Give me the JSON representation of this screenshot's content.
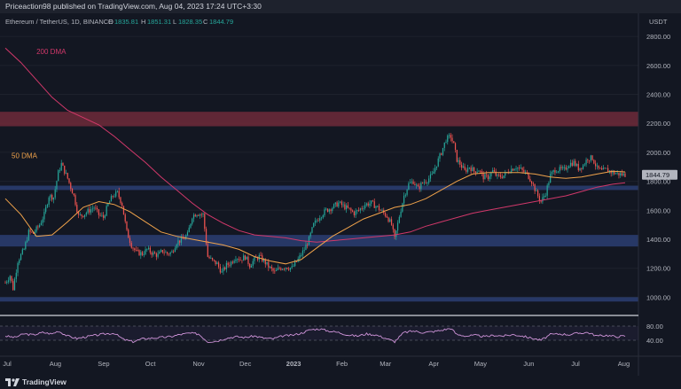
{
  "header": {
    "published": "Priceaction98 published on TradingView.com, Aug 04, 2023 17:24 UTC+3:30"
  },
  "footer": {
    "brand": "TradingView"
  },
  "chart_data": {
    "type": "candlestick",
    "title": "Ethereum / TetherUS, 1D, BINANCE",
    "ohlc": {
      "o_label": "O",
      "o": "1835.81",
      "h_label": "H",
      "h": "1851.31",
      "l_label": "L",
      "l": "1828.35",
      "c_label": "C",
      "c": "1844.79"
    },
    "currency": "USDT",
    "last_price": "1844.79",
    "ylim": [
      880,
      2960
    ],
    "yticks": [
      "2800.00",
      "2600.00",
      "2400.00",
      "2200.00",
      "2000.00",
      "1800.00",
      "1600.00",
      "1400.00",
      "1200.00",
      "1000.00"
    ],
    "xlabels": [
      "Jul",
      "Aug",
      "Sep",
      "Oct",
      "Nov",
      "Dec",
      "2023",
      "Feb",
      "Mar",
      "Apr",
      "May",
      "Jun",
      "Jul",
      "Aug"
    ],
    "xlabel_days": [
      0,
      31,
      62,
      92,
      123,
      153,
      184,
      215,
      243,
      274,
      304,
      335,
      365,
      396
    ],
    "price_path": [
      [
        0,
        1100
      ],
      [
        3,
        1150
      ],
      [
        5,
        1060
      ],
      [
        8,
        1250
      ],
      [
        12,
        1330
      ],
      [
        15,
        1450
      ],
      [
        18,
        1440
      ],
      [
        22,
        1500
      ],
      [
        25,
        1570
      ],
      [
        28,
        1700
      ],
      [
        31,
        1690
      ],
      [
        34,
        1860
      ],
      [
        36,
        1920
      ],
      [
        40,
        1820
      ],
      [
        44,
        1700
      ],
      [
        47,
        1560
      ],
      [
        50,
        1570
      ],
      [
        54,
        1600
      ],
      [
        57,
        1620
      ],
      [
        60,
        1570
      ],
      [
        63,
        1550
      ],
      [
        66,
        1640
      ],
      [
        69,
        1700
      ],
      [
        72,
        1720
      ],
      [
        75,
        1640
      ],
      [
        78,
        1450
      ],
      [
        81,
        1360
      ],
      [
        84,
        1310
      ],
      [
        88,
        1300
      ],
      [
        91,
        1330
      ],
      [
        95,
        1300
      ],
      [
        98,
        1290
      ],
      [
        101,
        1320
      ],
      [
        104,
        1300
      ],
      [
        107,
        1310
      ],
      [
        110,
        1380
      ],
      [
        114,
        1400
      ],
      [
        117,
        1430
      ],
      [
        120,
        1560
      ],
      [
        123,
        1580
      ],
      [
        127,
        1570
      ],
      [
        130,
        1280
      ],
      [
        133,
        1250
      ],
      [
        136,
        1230
      ],
      [
        139,
        1170
      ],
      [
        142,
        1220
      ],
      [
        145,
        1240
      ],
      [
        148,
        1280
      ],
      [
        151,
        1260
      ],
      [
        154,
        1280
      ],
      [
        157,
        1220
      ],
      [
        160,
        1260
      ],
      [
        163,
        1280
      ],
      [
        166,
        1250
      ],
      [
        170,
        1200
      ],
      [
        173,
        1170
      ],
      [
        176,
        1200
      ],
      [
        180,
        1210
      ],
      [
        184,
        1200
      ],
      [
        188,
        1260
      ],
      [
        192,
        1330
      ],
      [
        195,
        1400
      ],
      [
        198,
        1500
      ],
      [
        202,
        1560
      ],
      [
        206,
        1600
      ],
      [
        210,
        1620
      ],
      [
        214,
        1650
      ],
      [
        217,
        1630
      ],
      [
        220,
        1610
      ],
      [
        224,
        1580
      ],
      [
        227,
        1600
      ],
      [
        231,
        1640
      ],
      [
        235,
        1650
      ],
      [
        239,
        1620
      ],
      [
        242,
        1590
      ],
      [
        245,
        1560
      ],
      [
        248,
        1500
      ],
      [
        250,
        1400
      ],
      [
        253,
        1560
      ],
      [
        256,
        1700
      ],
      [
        259,
        1780
      ],
      [
        262,
        1800
      ],
      [
        265,
        1750
      ],
      [
        268,
        1790
      ],
      [
        271,
        1810
      ],
      [
        274,
        1840
      ],
      [
        277,
        1920
      ],
      [
        280,
        2000
      ],
      [
        283,
        2090
      ],
      [
        286,
        2110
      ],
      [
        288,
        2050
      ],
      [
        290,
        1950
      ],
      [
        292,
        1920
      ],
      [
        295,
        1870
      ],
      [
        298,
        1900
      ],
      [
        301,
        1870
      ],
      [
        304,
        1880
      ],
      [
        307,
        1830
      ],
      [
        310,
        1830
      ],
      [
        313,
        1870
      ],
      [
        316,
        1830
      ],
      [
        320,
        1840
      ],
      [
        324,
        1880
      ],
      [
        328,
        1900
      ],
      [
        331,
        1880
      ],
      [
        335,
        1850
      ],
      [
        338,
        1800
      ],
      [
        341,
        1720
      ],
      [
        344,
        1660
      ],
      [
        347,
        1720
      ],
      [
        350,
        1840
      ],
      [
        353,
        1880
      ],
      [
        356,
        1880
      ],
      [
        359,
        1880
      ],
      [
        362,
        1920
      ],
      [
        365,
        1930
      ],
      [
        368,
        1890
      ],
      [
        371,
        1910
      ],
      [
        374,
        1960
      ],
      [
        377,
        1960
      ],
      [
        380,
        1890
      ],
      [
        383,
        1870
      ],
      [
        386,
        1880
      ],
      [
        390,
        1860
      ],
      [
        394,
        1850
      ],
      [
        398,
        1845
      ]
    ],
    "ma50_label": "50 DMA",
    "ma50_color": "#f0a34b",
    "ma50": [
      [
        0,
        1680
      ],
      [
        10,
        1570
      ],
      [
        20,
        1420
      ],
      [
        30,
        1430
      ],
      [
        40,
        1520
      ],
      [
        50,
        1620
      ],
      [
        60,
        1660
      ],
      [
        70,
        1640
      ],
      [
        80,
        1590
      ],
      [
        90,
        1520
      ],
      [
        100,
        1450
      ],
      [
        110,
        1420
      ],
      [
        120,
        1400
      ],
      [
        130,
        1380
      ],
      [
        140,
        1360
      ],
      [
        150,
        1330
      ],
      [
        160,
        1280
      ],
      [
        170,
        1250
      ],
      [
        180,
        1230
      ],
      [
        190,
        1260
      ],
      [
        200,
        1340
      ],
      [
        210,
        1420
      ],
      [
        220,
        1480
      ],
      [
        230,
        1540
      ],
      [
        240,
        1580
      ],
      [
        250,
        1620
      ],
      [
        260,
        1640
      ],
      [
        270,
        1680
      ],
      [
        280,
        1740
      ],
      [
        290,
        1800
      ],
      [
        300,
        1850
      ],
      [
        310,
        1860
      ],
      [
        320,
        1860
      ],
      [
        330,
        1860
      ],
      [
        340,
        1850
      ],
      [
        350,
        1830
      ],
      [
        360,
        1820
      ],
      [
        370,
        1830
      ],
      [
        380,
        1850
      ],
      [
        390,
        1870
      ],
      [
        398,
        1865
      ]
    ],
    "ma200_label": "200 DMA",
    "ma200_color": "#d1386a",
    "ma200": [
      [
        0,
        2720
      ],
      [
        10,
        2620
      ],
      [
        20,
        2500
      ],
      [
        30,
        2380
      ],
      [
        40,
        2290
      ],
      [
        50,
        2240
      ],
      [
        60,
        2190
      ],
      [
        70,
        2110
      ],
      [
        80,
        2020
      ],
      [
        90,
        1930
      ],
      [
        100,
        1830
      ],
      [
        110,
        1740
      ],
      [
        120,
        1650
      ],
      [
        130,
        1570
      ],
      [
        140,
        1510
      ],
      [
        150,
        1460
      ],
      [
        160,
        1430
      ],
      [
        170,
        1420
      ],
      [
        180,
        1410
      ],
      [
        190,
        1390
      ],
      [
        200,
        1380
      ],
      [
        210,
        1390
      ],
      [
        220,
        1400
      ],
      [
        230,
        1410
      ],
      [
        240,
        1420
      ],
      [
        250,
        1430
      ],
      [
        260,
        1450
      ],
      [
        270,
        1490
      ],
      [
        280,
        1520
      ],
      [
        290,
        1550
      ],
      [
        300,
        1580
      ],
      [
        310,
        1600
      ],
      [
        320,
        1620
      ],
      [
        330,
        1640
      ],
      [
        340,
        1660
      ],
      [
        350,
        1680
      ],
      [
        360,
        1700
      ],
      [
        370,
        1730
      ],
      [
        380,
        1760
      ],
      [
        390,
        1780
      ],
      [
        398,
        1790
      ]
    ],
    "resistance_zone": [
      2180,
      2280
    ],
    "support_zones": [
      [
        1740,
        1770
      ],
      [
        1350,
        1430
      ],
      [
        970,
        1000
      ]
    ],
    "zone_colors": {
      "resistance": "#6e2a3a",
      "support": "#2a3c6e"
    },
    "up_color": "#26a69a",
    "down_color": "#ef5350",
    "rsi": {
      "levels": [
        "80.00",
        "40.00"
      ],
      "color": "#ce93d8",
      "values": [
        [
          0,
          52
        ],
        [
          6,
          48
        ],
        [
          12,
          58
        ],
        [
          18,
          55
        ],
        [
          24,
          62
        ],
        [
          30,
          58
        ],
        [
          34,
          66
        ],
        [
          40,
          52
        ],
        [
          46,
          45
        ],
        [
          52,
          50
        ],
        [
          58,
          54
        ],
        [
          64,
          58
        ],
        [
          70,
          60
        ],
        [
          76,
          42
        ],
        [
          82,
          36
        ],
        [
          88,
          44
        ],
        [
          94,
          46
        ],
        [
          100,
          48
        ],
        [
          106,
          50
        ],
        [
          112,
          56
        ],
        [
          118,
          60
        ],
        [
          124,
          58
        ],
        [
          130,
          36
        ],
        [
          136,
          38
        ],
        [
          142,
          46
        ],
        [
          148,
          50
        ],
        [
          154,
          48
        ],
        [
          160,
          52
        ],
        [
          166,
          46
        ],
        [
          172,
          44
        ],
        [
          178,
          52
        ],
        [
          184,
          54
        ],
        [
          190,
          60
        ],
        [
          196,
          70
        ],
        [
          202,
          72
        ],
        [
          208,
          66
        ],
        [
          214,
          62
        ],
        [
          220,
          55
        ],
        [
          226,
          52
        ],
        [
          232,
          58
        ],
        [
          238,
          55
        ],
        [
          244,
          46
        ],
        [
          250,
          36
        ],
        [
          256,
          62
        ],
        [
          262,
          66
        ],
        [
          268,
          62
        ],
        [
          274,
          64
        ],
        [
          280,
          68
        ],
        [
          286,
          74
        ],
        [
          290,
          56
        ],
        [
          296,
          52
        ],
        [
          302,
          54
        ],
        [
          308,
          50
        ],
        [
          314,
          54
        ],
        [
          320,
          52
        ],
        [
          326,
          56
        ],
        [
          332,
          52
        ],
        [
          338,
          46
        ],
        [
          344,
          40
        ],
        [
          350,
          56
        ],
        [
          356,
          58
        ],
        [
          362,
          56
        ],
        [
          368,
          60
        ],
        [
          374,
          62
        ],
        [
          380,
          52
        ],
        [
          386,
          54
        ],
        [
          392,
          50
        ],
        [
          398,
          52
        ]
      ]
    }
  }
}
